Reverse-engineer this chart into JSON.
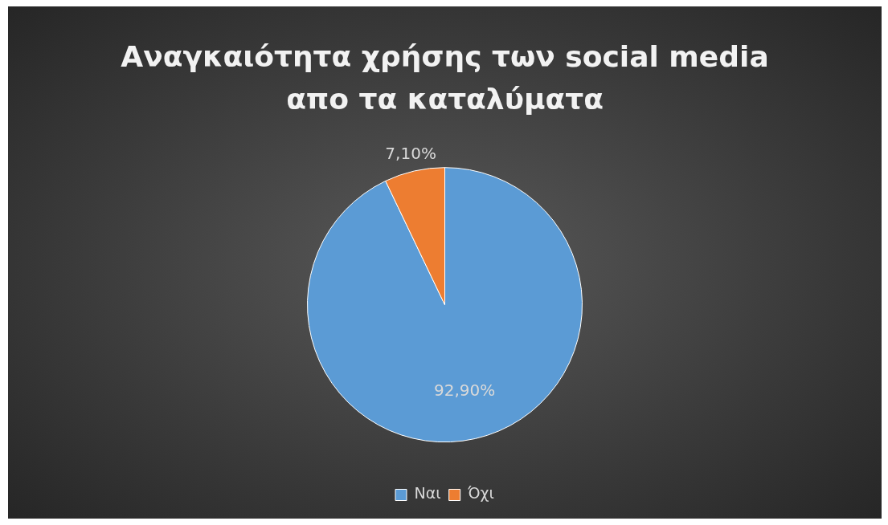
{
  "chart_data": {
    "type": "pie",
    "title": "Αναγκαιότητα χρήσης των social media\nαπο τα καταλύματα",
    "categories": [
      "Ναι",
      "Όχι"
    ],
    "values": [
      92.9,
      7.1
    ],
    "colors": [
      "#5b9bd5",
      "#ed7d31"
    ],
    "value_labels": [
      "92,90%",
      "7,10%"
    ],
    "legend": "bottom"
  }
}
